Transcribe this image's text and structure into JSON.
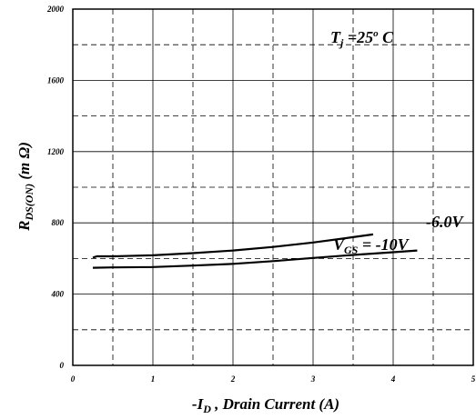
{
  "chart_data": {
    "type": "line",
    "xlabel": {
      "prefix": "-I",
      "sub": "D",
      "rest": " , Drain Current (A)"
    },
    "ylabel": {
      "main": "R",
      "sub": "DS(ON)",
      "rest": " (m Ω)"
    },
    "xlim": [
      0,
      5
    ],
    "ylim": [
      0,
      2000
    ],
    "x_ticks": [
      "0",
      "1",
      "2",
      "3",
      "4",
      "5"
    ],
    "y_ticks": [
      "0",
      "400",
      "800",
      "1200",
      "1600",
      "2000"
    ],
    "major_grid": {
      "x": [
        1,
        2,
        3,
        4
      ],
      "y": [
        400,
        800,
        1200,
        1600
      ]
    },
    "minor_grid": {
      "x": [
        0.5,
        1.5,
        2.5,
        3.5,
        4.5
      ],
      "y": [
        200,
        600,
        1000,
        1400,
        1800
      ]
    },
    "series": [
      {
        "name": "-6.0V",
        "x": [
          0.25,
          0.3,
          0.5,
          1.0,
          1.5,
          2.0,
          2.5,
          3.0,
          3.5,
          3.75
        ],
        "y": [
          605,
          612,
          612,
          618,
          630,
          645,
          665,
          690,
          720,
          735
        ]
      },
      {
        "name": "V GS = -10V",
        "x": [
          0.25,
          0.5,
          1.0,
          1.5,
          2.0,
          2.5,
          3.0,
          3.5,
          4.0,
          4.3
        ],
        "y": [
          548,
          550,
          552,
          560,
          570,
          585,
          603,
          620,
          635,
          645
        ]
      }
    ],
    "annotations": {
      "tj": {
        "main": "T",
        "sub": "j",
        "mid": " =25",
        "sup": "o",
        "end": " C"
      },
      "v6": "-6.0V",
      "v10": {
        "main": "V",
        "sub": "GS",
        "end": " = -10V"
      }
    },
    "grid": true,
    "legend": "none"
  }
}
